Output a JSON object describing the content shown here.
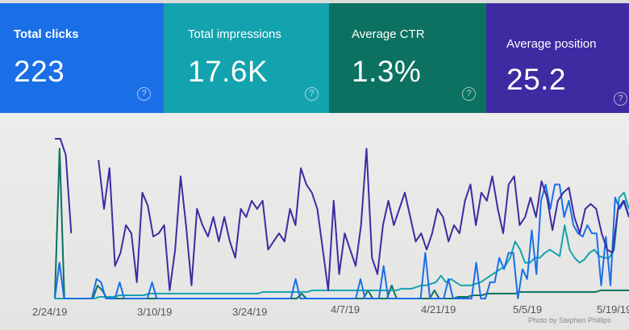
{
  "metrics": [
    {
      "label": "Total clicks",
      "value": "223",
      "help_icon": "help-circle-icon",
      "color": "#1a6fe6"
    },
    {
      "label": "Total impressions",
      "value": "17.6K",
      "help_icon": "help-circle-icon",
      "color": "#13a3ae"
    },
    {
      "label": "Average CTR",
      "value": "1.3%",
      "help_icon": "help-circle-icon",
      "color": "#0c7160"
    },
    {
      "label": "Average position",
      "value": "25.2",
      "help_icon": "help-circle-icon",
      "color": "#3d2ba2"
    }
  ],
  "help_glyph": "?",
  "credit": "Photo by Stephen Phillips",
  "chart_data": {
    "type": "line",
    "title": "",
    "xlabel": "",
    "ylabel": "",
    "x_ticks": [
      "2/24/19",
      "3/10/19",
      "3/24/19",
      "4/7/19",
      "4/21/19",
      "5/5/19",
      "5/19/19"
    ],
    "ylim": [
      0,
      100
    ],
    "grid": false,
    "series": [
      {
        "name": "Average position",
        "color": "#3d2ba2",
        "values": [
          98,
          98,
          88,
          40,
          null,
          null,
          null,
          null,
          85,
          55,
          80,
          20,
          28,
          45,
          40,
          10,
          65,
          57,
          38,
          40,
          45,
          5,
          30,
          75,
          45,
          8,
          55,
          45,
          38,
          50,
          35,
          50,
          35,
          25,
          55,
          50,
          60,
          55,
          60,
          30,
          35,
          40,
          35,
          55,
          45,
          80,
          70,
          65,
          55,
          30,
          5,
          60,
          15,
          40,
          30,
          20,
          45,
          92,
          25,
          15,
          45,
          60,
          45,
          55,
          65,
          50,
          35,
          40,
          30,
          40,
          55,
          50,
          35,
          45,
          40,
          60,
          70,
          45,
          65,
          60,
          75,
          55,
          40,
          70,
          75,
          45,
          50,
          62,
          50,
          72,
          62,
          42,
          60,
          65,
          68,
          50,
          40,
          55,
          58,
          55,
          40,
          30,
          28,
          55,
          60,
          50
        ]
      },
      {
        "name": "Total clicks",
        "color": "#1a6fe6",
        "values": [
          0,
          22,
          0,
          0,
          0,
          0,
          0,
          0,
          0,
          12,
          10,
          0,
          0,
          0,
          10,
          0,
          0,
          0,
          0,
          0,
          0,
          10,
          0,
          0,
          0,
          0,
          0,
          0,
          0,
          0,
          0,
          0,
          0,
          0,
          0,
          0,
          0,
          0,
          0,
          0,
          0,
          0,
          0,
          0,
          0,
          0,
          0,
          0,
          0,
          0,
          0,
          0,
          12,
          0,
          0,
          0,
          0,
          0,
          0,
          0,
          0,
          0,
          0,
          0,
          0,
          0,
          12,
          0,
          0,
          0,
          0,
          20,
          0,
          0,
          0,
          0,
          0,
          0,
          0,
          0,
          28,
          0,
          0,
          0,
          0,
          12,
          0,
          0,
          0,
          0,
          0,
          22,
          0,
          0,
          10,
          10,
          25,
          18,
          28,
          28,
          0,
          18,
          12,
          42,
          15,
          60,
          70,
          55,
          70,
          70,
          50,
          60,
          45,
          40,
          38,
          45,
          40,
          40,
          8,
          38,
          8,
          62,
          55,
          60,
          50
        ]
      },
      {
        "name": "Total impressions",
        "color": "#13a3ae",
        "values": [
          0,
          0,
          0,
          0,
          0,
          0,
          0,
          0,
          0,
          1,
          1,
          1,
          1,
          2,
          2,
          2,
          2,
          2,
          2,
          3,
          3,
          3,
          3,
          3,
          3,
          3,
          3,
          3,
          3,
          3,
          3,
          3,
          3,
          3,
          3,
          3,
          3,
          3,
          3,
          3,
          3,
          3,
          4,
          4,
          4,
          4,
          4,
          4,
          4,
          4,
          4,
          4,
          5,
          5,
          5,
          5,
          5,
          5,
          5,
          5,
          5,
          5,
          5,
          5,
          5,
          5,
          5,
          5,
          5,
          5,
          6,
          6,
          6,
          7,
          8,
          8,
          9,
          10,
          14,
          10,
          12,
          10,
          8,
          8,
          8,
          9,
          10,
          12,
          14,
          16,
          18,
          20,
          25,
          35,
          30,
          22,
          22,
          25,
          25,
          28,
          30,
          28,
          26,
          45,
          30,
          25,
          22,
          24,
          28,
          30,
          26,
          25,
          25,
          30,
          62,
          65,
          55
        ]
      },
      {
        "name": "Average CTR",
        "color": "#0c7160",
        "values": [
          0,
          92,
          0,
          0,
          0,
          0,
          0,
          0,
          0,
          8,
          5,
          0,
          0,
          0,
          0,
          0,
          0,
          0,
          0,
          0,
          0,
          0,
          0,
          0,
          0,
          0,
          0,
          0,
          0,
          0,
          0,
          0,
          0,
          0,
          0,
          0,
          0,
          0,
          0,
          0,
          0,
          0,
          0,
          0,
          0,
          0,
          0,
          0,
          0,
          0,
          0,
          0,
          3,
          0,
          0,
          0,
          0,
          0,
          0,
          0,
          0,
          0,
          0,
          0,
          0,
          0,
          5,
          0,
          0,
          0,
          0,
          8,
          0,
          0,
          0,
          0,
          0,
          0,
          0,
          0,
          5,
          0,
          0,
          0,
          0,
          1,
          1,
          1,
          2,
          2,
          2,
          3,
          3,
          3,
          3,
          3,
          3,
          3,
          4,
          4,
          4,
          4,
          4,
          4,
          4,
          4,
          4,
          4,
          4,
          4,
          4,
          4,
          4,
          4,
          4,
          5,
          5,
          5,
          5,
          5,
          5,
          5
        ]
      }
    ]
  }
}
